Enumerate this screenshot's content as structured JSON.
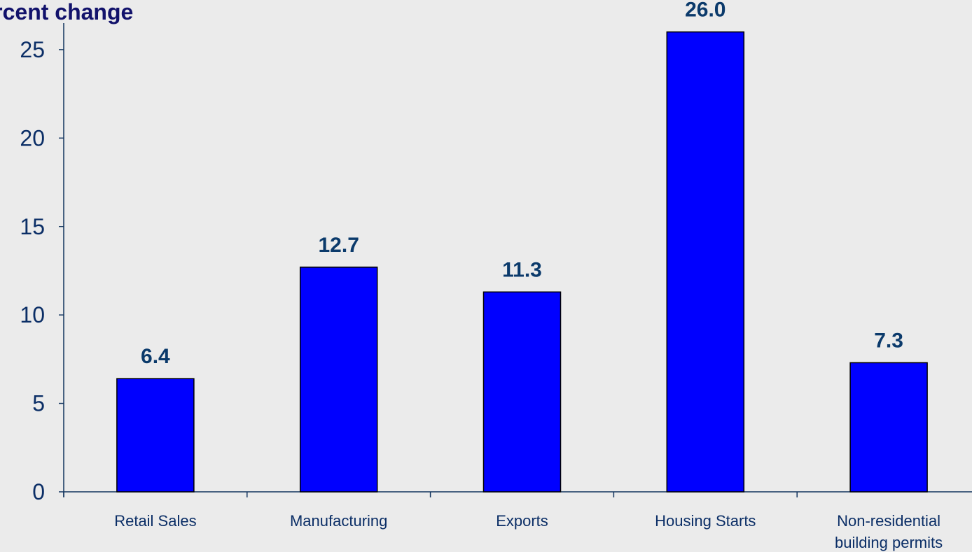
{
  "chart_data": {
    "type": "bar",
    "ylabel": "Percent change",
    "xlabel": "",
    "categories": [
      "Retail Sales",
      "Manufacturing",
      "Exports",
      "Housing Starts",
      "Non-residential building permits"
    ],
    "category_lines": [
      [
        "Retail Sales"
      ],
      [
        "Manufacturing"
      ],
      [
        "Exports"
      ],
      [
        "Housing Starts"
      ],
      [
        "Non-residential",
        "building permits"
      ]
    ],
    "values": [
      6.4,
      12.7,
      11.3,
      26.0,
      7.3
    ],
    "data_labels": [
      "6.4",
      "12.7",
      "11.3",
      "26.0",
      "7.3"
    ],
    "ylim": [
      0,
      26.5
    ],
    "yticks": [
      0,
      5,
      10,
      15,
      20,
      25
    ],
    "grid": false,
    "bar_color": "#0000ff",
    "axis_color": "#12345e"
  }
}
